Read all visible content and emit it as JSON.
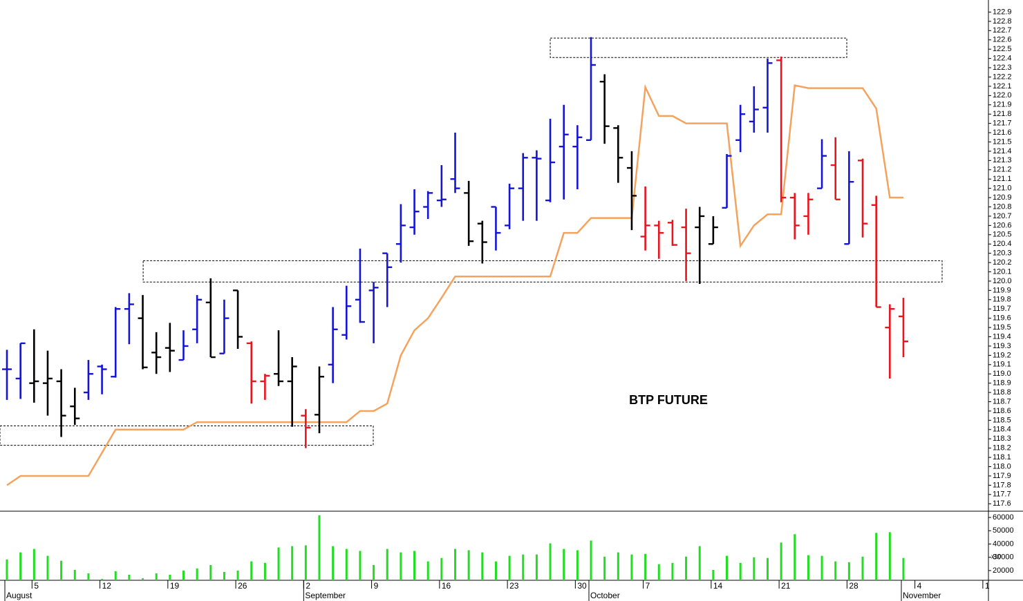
{
  "chart_data": [
    {
      "type": "ohlc",
      "annotation": "BTP FUTURE",
      "xlim": [
        -0.51,
        72.26
      ],
      "ylim": [
        117.52,
        123.03
      ],
      "yticks": [
        117.6,
        117.7,
        117.8,
        117.9,
        {
          "value": 118,
          "label": "118.0"
        },
        118.1,
        118.2,
        118.3,
        118.4,
        118.5,
        118.6,
        118.7,
        118.8,
        118.9,
        {
          "value": 119,
          "label": "119.0"
        },
        119.1,
        119.2,
        119.3,
        119.4,
        119.5,
        119.6,
        119.7,
        119.8,
        119.9,
        {
          "value": 120,
          "label": "120.0"
        },
        120.1,
        120.2,
        120.3,
        120.4,
        120.5,
        120.6,
        120.7,
        120.8,
        120.9,
        {
          "value": 121,
          "label": "121.0"
        },
        121.1,
        121.2,
        121.3,
        121.4,
        121.5,
        121.6,
        121.7,
        121.8,
        121.9,
        {
          "value": 122,
          "label": "122.0"
        },
        122.1,
        122.2,
        122.3,
        122.4,
        122.5,
        122.6,
        122.7,
        122.8,
        122.9
      ],
      "open": [
        119.05,
        118.95,
        118.9,
        118.9,
        118.92,
        118.65,
        118.8,
        119.08,
        118.97,
        119.7,
        119.6,
        119.23,
        119.28,
        119.15,
        119.48,
        119.77,
        119.22,
        119.9,
        119.33,
        118.92,
        119.0,
        118.92,
        118.55,
        118.56,
        119.1,
        119.42,
        119.8,
        119.9,
        120.3,
        120.4,
        120.58,
        120.8,
        120.87,
        121.1,
        120.95,
        120.62,
        120.8,
        120.6,
        121.0,
        121.33,
        120.87,
        121.45,
        121.45,
        121.52,
        122.15,
        121.65,
        121.22,
        120.48,
        120.6,
        120.63,
        120.58,
        120.58,
        120.4,
        120.79,
        121.52,
        121.72,
        121.87,
        122.38,
        120.9,
        120.7,
        121.0,
        121.25,
        120.4,
        121.3,
        120.82,
        119.5,
        119.62
      ],
      "high": [
        119.26,
        119.33,
        119.48,
        119.25,
        119.05,
        118.85,
        119.15,
        119.1,
        119.72,
        119.87,
        119.85,
        119.45,
        119.55,
        119.47,
        119.85,
        120.03,
        119.8,
        119.9,
        119.35,
        119.0,
        119.47,
        119.18,
        118.62,
        119.08,
        119.72,
        119.95,
        120.35,
        119.99,
        120.3,
        120.83,
        120.99,
        120.97,
        121.25,
        121.6,
        121.08,
        120.65,
        120.8,
        121.05,
        121.38,
        121.41,
        121.75,
        121.9,
        121.68,
        122.63,
        122.23,
        121.68,
        121.4,
        121.02,
        120.65,
        120.66,
        120.78,
        120.8,
        120.7,
        121.37,
        121.9,
        122.1,
        122.4,
        122.42,
        120.95,
        120.95,
        121.53,
        121.55,
        121.4,
        121.32,
        120.92,
        119.75,
        119.82
      ],
      "low": [
        118.72,
        118.73,
        118.69,
        118.55,
        118.32,
        118.45,
        118.72,
        118.78,
        118.96,
        119.32,
        119.05,
        119.0,
        119.02,
        119.15,
        119.33,
        119.18,
        119.22,
        119.27,
        118.68,
        118.72,
        118.87,
        118.43,
        118.2,
        118.36,
        118.9,
        119.37,
        119.55,
        119.33,
        119.72,
        120.2,
        120.5,
        120.67,
        120.8,
        120.95,
        120.38,
        120.19,
        120.33,
        120.56,
        120.65,
        120.65,
        120.85,
        120.88,
        120.99,
        121.52,
        121.48,
        121.06,
        120.55,
        120.33,
        120.24,
        120.38,
        120.0,
        119.97,
        120.4,
        120.79,
        121.39,
        121.6,
        121.6,
        120.85,
        120.45,
        120.5,
        121.0,
        120.88,
        120.4,
        120.47,
        119.72,
        118.95,
        119.18
      ],
      "close": [
        119.05,
        119.33,
        118.92,
        118.95,
        118.55,
        118.52,
        119.0,
        119.05,
        119.7,
        119.75,
        119.07,
        119.18,
        119.25,
        119.3,
        119.8,
        119.18,
        119.6,
        119.4,
        118.92,
        118.98,
        118.92,
        119.08,
        118.42,
        118.97,
        119.48,
        119.73,
        119.56,
        119.93,
        120.15,
        120.6,
        120.75,
        120.95,
        120.88,
        121.0,
        120.43,
        120.42,
        120.52,
        121.0,
        121.33,
        121.32,
        121.28,
        121.58,
        121.55,
        122.33,
        121.67,
        121.33,
        120.92,
        120.6,
        120.52,
        120.39,
        120.3,
        120.7,
        120.58,
        121.35,
        121.8,
        121.85,
        122.35,
        120.9,
        120.6,
        120.88,
        121.35,
        120.88,
        121.07,
        120.62,
        119.72,
        119.7,
        119.35
      ],
      "bar_colors": [
        "#1414d2",
        "#1414d2",
        "#000000",
        "#000000",
        "#000000",
        "#000000",
        "#1414d2",
        "#1414d2",
        "#1414d2",
        "#1414d2",
        "#000000",
        "#000000",
        "#000000",
        "#1414d2",
        "#1414d2",
        "#000000",
        "#1414d2",
        "#000000",
        "#e8141e",
        "#e8141e",
        "#000000",
        "#000000",
        "#e8141e",
        "#000000",
        "#1414d2",
        "#1414d2",
        "#1414d2",
        "#1414d2",
        "#1414d2",
        "#1414d2",
        "#1414d2",
        "#1414d2",
        "#1414d2",
        "#1414d2",
        "#000000",
        "#000000",
        "#1414d2",
        "#1414d2",
        "#1414d2",
        "#1414d2",
        "#1414d2",
        "#1414d2",
        "#1414d2",
        "#1414d2",
        "#000000",
        "#000000",
        "#000000",
        "#e8141e",
        "#e8141e",
        "#e8141e",
        "#e8141e",
        "#000000",
        "#000000",
        "#1414d2",
        "#1414d2",
        "#1414d2",
        "#1414d2",
        "#e8141e",
        "#e8141e",
        "#e8141e",
        "#1414d2",
        "#e8141e",
        "#1414d2",
        "#e8141e",
        "#e8141e",
        "#e8141e",
        "#e8141e"
      ],
      "line": {
        "color": "#f5a25d",
        "values": [
          117.8,
          117.9,
          117.9,
          117.9,
          117.9,
          117.9,
          117.9,
          118.15,
          118.4,
          118.4,
          118.4,
          118.4,
          118.4,
          118.4,
          118.48,
          118.48,
          118.48,
          118.48,
          118.48,
          118.48,
          118.48,
          118.48,
          118.48,
          118.48,
          118.48,
          118.48,
          118.6,
          118.6,
          118.68,
          119.2,
          119.47,
          119.6,
          119.82,
          120.05,
          120.05,
          120.05,
          120.05,
          120.05,
          120.05,
          120.05,
          120.05,
          120.52,
          120.52,
          120.68,
          120.68,
          120.68,
          120.68,
          122.09,
          121.78,
          121.78,
          121.7,
          121.7,
          121.7,
          121.7,
          120.38,
          120.6,
          120.72,
          120.72,
          122.11,
          122.08,
          122.08,
          122.08,
          122.08,
          122.08,
          121.86,
          120.9,
          120.9
        ]
      },
      "zones": [
        {
          "x": [
            -0.51,
            26.97
          ],
          "y": [
            118.23,
            118.44
          ]
        },
        {
          "x": [
            10.03,
            68.85
          ],
          "y": [
            119.99,
            120.22
          ]
        },
        {
          "x": [
            40.0,
            61.83
          ],
          "y": [
            122.41,
            122.62
          ]
        }
      ]
    },
    {
      "type": "bar",
      "color": "#22dd22",
      "multiplier_label": "x10",
      "ylim": [
        12700,
        64700
      ],
      "yticks": [
        20000,
        30000,
        40000,
        50000,
        60000
      ],
      "values": [
        28400,
        33700,
        36300,
        31100,
        27400,
        20500,
        17900,
        13700,
        19500,
        16900,
        14200,
        17900,
        16900,
        20000,
        21600,
        24200,
        19000,
        20000,
        26900,
        25800,
        37400,
        38400,
        39000,
        61600,
        38400,
        36300,
        34800,
        24200,
        36300,
        33700,
        34800,
        26900,
        29500,
        36300,
        35300,
        33700,
        26900,
        31100,
        32100,
        32100,
        40500,
        36300,
        35300,
        42600,
        30500,
        33700,
        32100,
        32600,
        24800,
        25800,
        30500,
        38400,
        20500,
        31100,
        25800,
        30000,
        29500,
        41100,
        47400,
        31600,
        31100,
        26900,
        26300,
        30500,
        48400,
        48900,
        29500
      ],
      "xticks": [
        {
          "value": 2,
          "label": "5"
        },
        {
          "value": 7,
          "label": "12"
        },
        {
          "value": 12,
          "label": "19"
        },
        {
          "value": 17,
          "label": "26"
        },
        {
          "value": 22,
          "label": "2"
        },
        {
          "value": 27,
          "label": "9"
        },
        {
          "value": 32,
          "label": "16"
        },
        {
          "value": 37,
          "label": "23"
        },
        {
          "value": 42,
          "label": "30"
        },
        {
          "value": 47,
          "label": "7"
        },
        {
          "value": 52,
          "label": "14"
        },
        {
          "value": 57,
          "label": "21"
        },
        {
          "value": 62,
          "label": "28"
        },
        {
          "value": 67,
          "label": "4"
        },
        {
          "value": 72,
          "label": "1"
        }
      ],
      "month_ticks": [
        {
          "value": 0,
          "label": "August"
        },
        {
          "value": 22,
          "label": "September"
        },
        {
          "value": 43,
          "label": "October"
        },
        {
          "value": 66,
          "label": "November"
        }
      ]
    }
  ]
}
